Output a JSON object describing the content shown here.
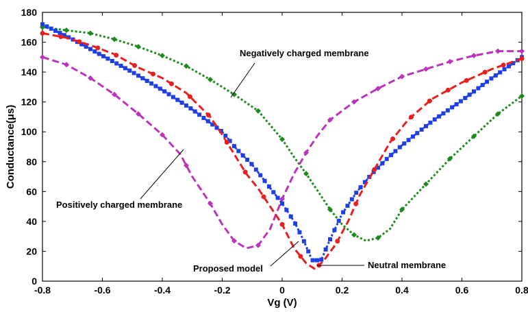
{
  "chart_data": {
    "type": "line",
    "xlabel": "Vg (V)",
    "ylabel": "Conductance(μs)",
    "xlim": [
      -0.8,
      0.8
    ],
    "ylim": [
      0,
      180
    ],
    "xticks": [
      "-0.8",
      "-0.6",
      "-0.4",
      "-0.2",
      "0",
      "0.2",
      "0.4",
      "0.6",
      "0.8"
    ],
    "yticks": [
      "0",
      "20",
      "40",
      "60",
      "80",
      "100",
      "120",
      "140",
      "160",
      "180"
    ],
    "grid": false,
    "legend": "none",
    "series": [
      {
        "name": "Negatively charged membrane",
        "color": "#1a8a1a",
        "style": "dotted",
        "marker": "diamond",
        "x": [
          -0.8,
          -0.72,
          -0.64,
          -0.56,
          -0.48,
          -0.4,
          -0.32,
          -0.24,
          -0.16,
          -0.08,
          0.0,
          0.04,
          0.08,
          0.12,
          0.16,
          0.2,
          0.24,
          0.28,
          0.32,
          0.36,
          0.4,
          0.48,
          0.56,
          0.64,
          0.72,
          0.8
        ],
        "y": [
          170,
          168,
          166,
          162,
          157,
          151,
          144,
          135,
          125,
          114,
          95,
          83,
          72,
          60,
          48,
          38,
          31,
          27,
          29,
          35,
          48,
          65,
          82,
          97,
          112,
          124
        ]
      },
      {
        "name": "Positively charged membrane",
        "color": "#bb33bb",
        "style": "dashed",
        "marker": "diamond",
        "x": [
          -0.8,
          -0.72,
          -0.64,
          -0.56,
          -0.48,
          -0.4,
          -0.34,
          -0.3,
          -0.24,
          -0.2,
          -0.16,
          -0.12,
          -0.08,
          -0.04,
          0.0,
          0.04,
          0.08,
          0.12,
          0.16,
          0.24,
          0.32,
          0.4,
          0.48,
          0.56,
          0.64,
          0.72,
          0.8
        ],
        "y": [
          150,
          145,
          136,
          125,
          112,
          98,
          85,
          70,
          52,
          38,
          27,
          22,
          24,
          35,
          55,
          72,
          86,
          98,
          108,
          120,
          129,
          137,
          142,
          147,
          151,
          154,
          154
        ]
      },
      {
        "name": "Proposed model",
        "color": "#1f3fe6",
        "style": "dotted",
        "marker": "square",
        "x": [
          -0.8,
          -0.7,
          -0.6,
          -0.5,
          -0.4,
          -0.3,
          -0.2,
          -0.15,
          -0.1,
          -0.05,
          0.0,
          0.04,
          0.07,
          0.1,
          0.13,
          0.16,
          0.2,
          0.25,
          0.3,
          0.35,
          0.4,
          0.5,
          0.6,
          0.7,
          0.8
        ],
        "y": [
          172,
          162,
          151,
          140,
          128,
          115,
          100,
          88,
          78,
          65,
          52,
          40,
          28,
          14,
          14,
          28,
          45,
          60,
          72,
          82,
          91,
          107,
          121,
          136,
          150
        ]
      },
      {
        "name": "Neutral membrane",
        "color": "#e81f1f",
        "style": "dashed",
        "marker": "dot",
        "x": [
          -0.8,
          -0.72,
          -0.64,
          -0.56,
          -0.48,
          -0.4,
          -0.32,
          -0.24,
          -0.2,
          -0.16,
          -0.12,
          -0.08,
          -0.04,
          0.0,
          0.04,
          0.08,
          0.11,
          0.14,
          0.18,
          0.22,
          0.26,
          0.3,
          0.36,
          0.42,
          0.5,
          0.6,
          0.7,
          0.8
        ],
        "y": [
          166,
          163,
          158,
          152,
          143,
          136,
          126,
          110,
          98,
          85,
          72,
          62,
          50,
          38,
          22,
          12,
          8,
          14,
          25,
          40,
          58,
          72,
          93,
          108,
          122,
          133,
          142,
          149
        ]
      }
    ],
    "annotations": [
      {
        "text": "Negatively charged membrane"
      },
      {
        "text": "Positively charged membrane"
      },
      {
        "text": "Proposed model"
      },
      {
        "text": "Neutral membrane"
      }
    ]
  }
}
